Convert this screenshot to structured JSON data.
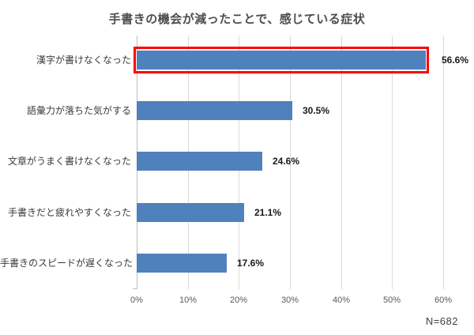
{
  "chart_data": {
    "type": "bar",
    "orientation": "horizontal",
    "title": "手書きの機会が減ったことで、感じている症状",
    "categories": [
      "漢字が書けなくなった",
      "語彙力が落ちた気がする",
      "文章がうまく書けなくなった",
      "手書きだと疲れやすくなった",
      "手書きのスピードが遅くなった"
    ],
    "values": [
      56.6,
      30.5,
      24.6,
      21.1,
      17.6
    ],
    "value_labels": [
      "56.6%",
      "30.5%",
      "24.6%",
      "21.1%",
      "17.6%"
    ],
    "highlighted_index": 0,
    "x_ticks": [
      "0%",
      "10%",
      "20%",
      "30%",
      "40%",
      "50%",
      "60%"
    ],
    "xlabel": "",
    "ylabel": "",
    "xlim": [
      0,
      60
    ],
    "grid": true,
    "legend": "none",
    "bar_color": "#4f81bd",
    "highlight_border_color": "#ff0000",
    "gridline_color": "#d9d9d9"
  },
  "footnote": {
    "n_label": "N=682"
  }
}
